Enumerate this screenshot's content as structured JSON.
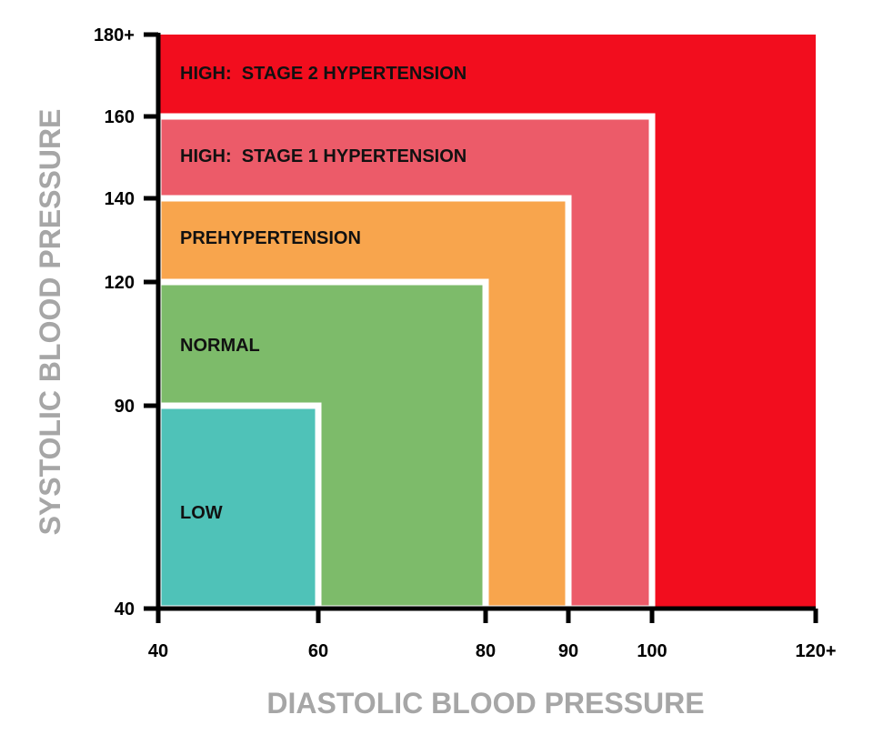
{
  "chart_data": {
    "type": "area",
    "title": "",
    "xlabel": "DIASTOLIC BLOOD PRESSURE",
    "ylabel": "SYSTOLIC BLOOD PRESSURE",
    "x_ticks": [
      "40",
      "60",
      "80",
      "90",
      "100",
      "120+"
    ],
    "x_tick_values": [
      40,
      60,
      80,
      90,
      100,
      120
    ],
    "y_ticks": [
      "40",
      "90",
      "120",
      "140",
      "160",
      "180+"
    ],
    "y_tick_values": [
      40,
      90,
      120,
      140,
      160,
      180
    ],
    "zones": [
      {
        "name": "HIGH:  STAGE 2 HYPERTENSION",
        "max_diastolic": 120,
        "max_systolic": 180,
        "color": "#f20d1e"
      },
      {
        "name": "HIGH:  STAGE 1 HYPERTENSION",
        "max_diastolic": 100,
        "max_systolic": 160,
        "color": "#ec5b69"
      },
      {
        "name": "PREHYPERTENSION",
        "max_diastolic": 90,
        "max_systolic": 140,
        "color": "#f8a54d"
      },
      {
        "name": "NORMAL",
        "max_diastolic": 80,
        "max_systolic": 120,
        "color": "#7dbb6a"
      },
      {
        "name": "LOW",
        "max_diastolic": 60,
        "max_systolic": 90,
        "color": "#4fc2b8"
      }
    ],
    "grid": false,
    "legend": "none"
  }
}
